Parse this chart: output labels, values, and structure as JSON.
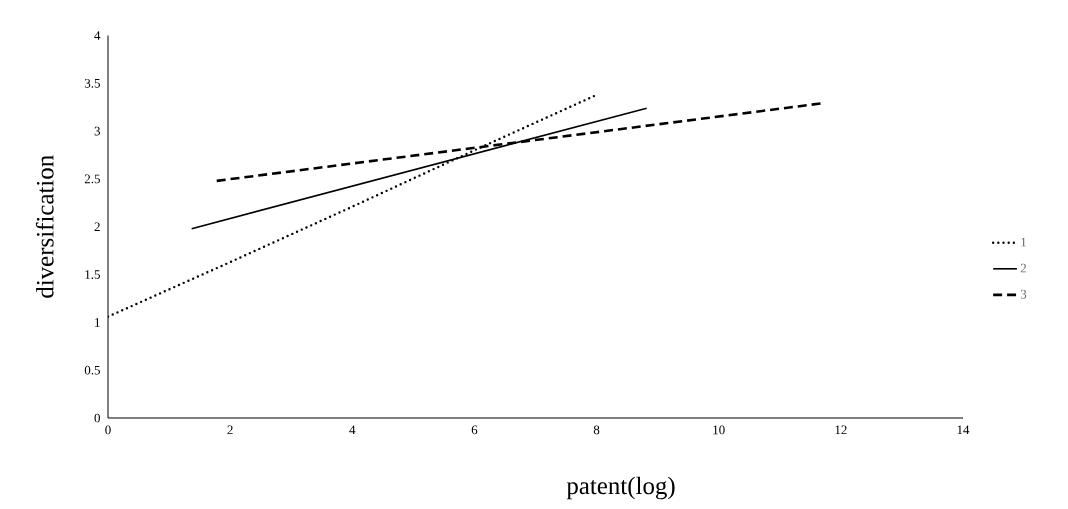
{
  "chart_data": {
    "type": "line",
    "xlabel": "patent(log)",
    "ylabel": "diversification",
    "xlim": [
      0,
      14
    ],
    "xticks": [
      0,
      2,
      4,
      6,
      8,
      10,
      12,
      14
    ],
    "ylim": [
      0,
      4
    ],
    "yticks": [
      0,
      0.5,
      1,
      1.5,
      2,
      2.5,
      3,
      3.5,
      4
    ],
    "legend": "right",
    "series": [
      {
        "name": "1",
        "color": "#000000",
        "line_style": "dotted",
        "x": [
          0,
          2,
          4,
          6,
          7.97
        ],
        "values": [
          1.06,
          1.63,
          2.21,
          2.8,
          3.37
        ]
      },
      {
        "name": "2",
        "color": "#000000",
        "line_style": "solid",
        "x": [
          1.37,
          8.82
        ],
        "values": [
          1.98,
          3.24
        ]
      },
      {
        "name": "3",
        "color": "#000000",
        "line_style": "dashed",
        "x": [
          1.78,
          11.68
        ],
        "values": [
          2.48,
          3.29
        ]
      }
    ]
  }
}
